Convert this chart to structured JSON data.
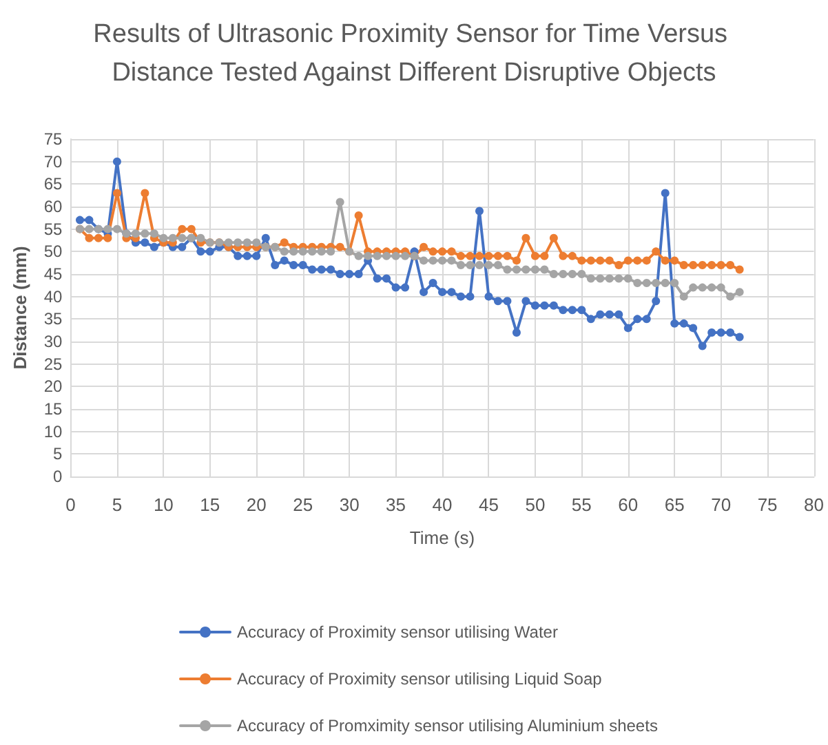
{
  "chart_data": {
    "type": "line",
    "title": "Results of Ultrasonic Proximity Sensor for Time Versus Distance Tested Against Different Disruptive Objects",
    "xlabel": "Time (s)",
    "ylabel": "Distance (mm)",
    "x": [
      1,
      2,
      3,
      4,
      5,
      6,
      7,
      8,
      9,
      10,
      11,
      12,
      13,
      14,
      15,
      16,
      17,
      18,
      19,
      20,
      21,
      22,
      23,
      24,
      25,
      26,
      27,
      28,
      29,
      30,
      31,
      32,
      33,
      34,
      35,
      36,
      37,
      38,
      39,
      40,
      41,
      42,
      43,
      44,
      45,
      46,
      47,
      48,
      49,
      50,
      51,
      52,
      53,
      54,
      55,
      56,
      57,
      58,
      59,
      60,
      61,
      62,
      63,
      64,
      65,
      66,
      67,
      68,
      69,
      70,
      71,
      72
    ],
    "series": [
      {
        "name": "Accuracy of Proximity sensor utilising Water",
        "color": "#4472c4",
        "values": [
          57,
          57,
          55,
          54,
          70,
          54,
          52,
          52,
          51,
          52,
          51,
          51,
          53,
          50,
          50,
          51,
          51,
          49,
          49,
          49,
          53,
          47,
          48,
          47,
          47,
          46,
          46,
          46,
          45,
          45,
          45,
          48,
          44,
          44,
          42,
          42,
          50,
          41,
          43,
          41,
          41,
          40,
          40,
          59,
          40,
          39,
          39,
          32,
          39,
          38,
          38,
          38,
          37,
          37,
          37,
          35,
          36,
          36,
          36,
          33,
          35,
          35,
          39,
          63,
          34,
          34,
          33,
          29,
          32,
          32,
          32,
          31
        ]
      },
      {
        "name": "Accuracy of Proximity sensor utilising Liquid Soap",
        "color": "#ed7d31",
        "values": [
          55,
          53,
          53,
          53,
          63,
          53,
          53,
          63,
          53,
          52,
          52,
          55,
          55,
          52,
          52,
          52,
          51,
          51,
          51,
          51,
          51,
          51,
          52,
          51,
          51,
          51,
          51,
          51,
          51,
          50,
          58,
          50,
          50,
          50,
          50,
          50,
          49,
          51,
          50,
          50,
          50,
          49,
          49,
          49,
          49,
          49,
          49,
          48,
          53,
          49,
          49,
          53,
          49,
          49,
          48,
          48,
          48,
          48,
          47,
          48,
          48,
          48,
          50,
          48,
          48,
          47,
          47,
          47,
          47,
          47,
          47,
          46
        ]
      },
      {
        "name": "Accuracy of Promximity sensor utilising Aluminium sheets",
        "color": "#a5a5a5",
        "values": [
          55,
          55,
          55,
          55,
          55,
          54,
          54,
          54,
          54,
          53,
          53,
          53,
          53,
          53,
          52,
          52,
          52,
          52,
          52,
          52,
          51,
          51,
          50,
          50,
          50,
          50,
          50,
          50,
          61,
          50,
          49,
          49,
          49,
          49,
          49,
          49,
          49,
          48,
          48,
          48,
          48,
          47,
          47,
          47,
          47,
          47,
          46,
          46,
          46,
          46,
          46,
          45,
          45,
          45,
          45,
          44,
          44,
          44,
          44,
          44,
          43,
          43,
          43,
          43,
          43,
          40,
          42,
          42,
          42,
          42,
          40,
          41
        ]
      }
    ],
    "xlim": [
      0,
      80
    ],
    "xticks": [
      0,
      5,
      10,
      15,
      20,
      25,
      30,
      35,
      40,
      45,
      50,
      55,
      60,
      65,
      70,
      75,
      80
    ],
    "ylim": [
      0,
      75
    ],
    "yticks": [
      0,
      5,
      10,
      15,
      20,
      25,
      30,
      35,
      40,
      45,
      50,
      55,
      60,
      65,
      70,
      75
    ],
    "grid": true,
    "legend": "bottom",
    "marker": "circle",
    "line_style": "solid"
  }
}
